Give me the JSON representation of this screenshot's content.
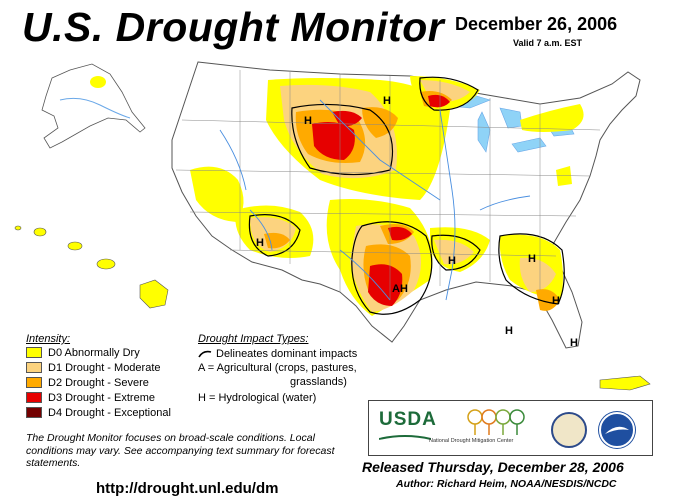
{
  "header": {
    "title": "U.S. Drought Monitor",
    "date": "December 26, 2006",
    "valid": "Valid 7 a.m. EST"
  },
  "colors": {
    "D0": "#ffff00",
    "D1": "#fcd37f",
    "D2": "#ffaa00",
    "D3": "#e60000",
    "D4": "#730000",
    "water": "#8fd3f7",
    "land": "#ffffff"
  },
  "legend": {
    "heading": "Intensity:",
    "items": [
      {
        "key": "D0",
        "label": "D0 Abnormally Dry"
      },
      {
        "key": "D1",
        "label": "D1 Drought - Moderate"
      },
      {
        "key": "D2",
        "label": "D2 Drought - Severe"
      },
      {
        "key": "D3",
        "label": "D3 Drought - Extreme"
      },
      {
        "key": "D4",
        "label": "D4 Drought - Exceptional"
      }
    ]
  },
  "impacts": {
    "heading": "Drought Impact Types:",
    "line_desc": "Delineates dominant impacts",
    "agri_line1": "A = Agricultural (crops, pastures,",
    "agri_line2": "grasslands)",
    "hydro": "H = Hydrological (water)"
  },
  "map_labels": [
    "H",
    "H",
    "H",
    "H",
    "AH",
    "H",
    "H",
    "H",
    "H"
  ],
  "logos": {
    "usda": "USDA",
    "ndmc": "National Drought Mitigation Center"
  },
  "footer": {
    "note": "The Drought Monitor focuses on broad-scale conditions. Local conditions may vary. See accompanying text summary for forecast statements.",
    "released": "Released Thursday, December 28, 2006",
    "author": "Author: Richard Heim, NOAA/NESDIS/NCDC",
    "url": "http://drought.unl.edu/dm"
  }
}
